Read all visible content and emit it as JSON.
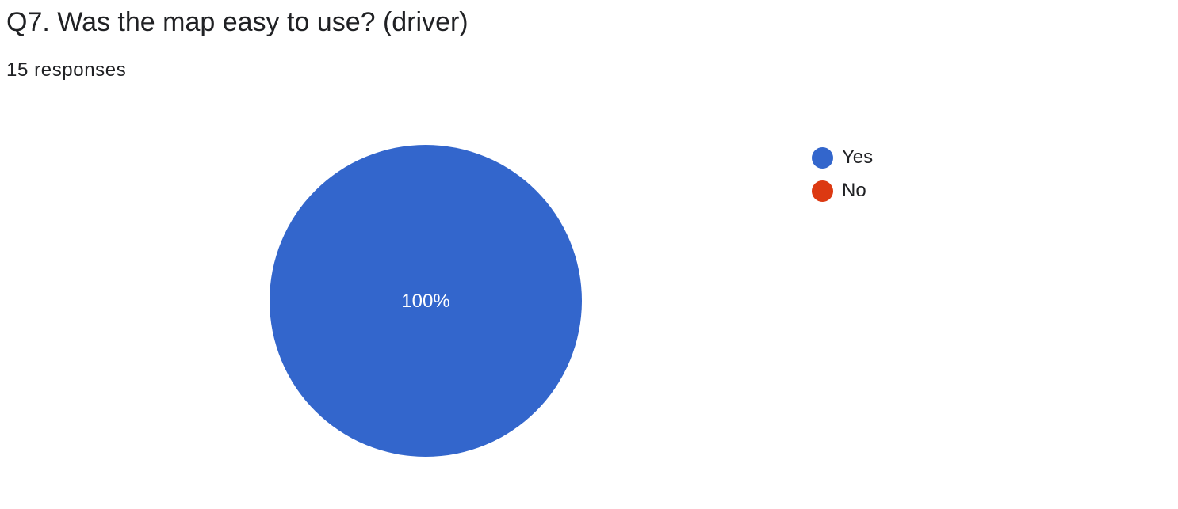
{
  "question": {
    "title": "Q7. Was the map easy to use? (driver)",
    "responses_text": "15 responses"
  },
  "chart_data": {
    "type": "pie",
    "categories": [
      "Yes",
      "No"
    ],
    "values": [
      100,
      0
    ],
    "value_unit": "%",
    "slice_labels": [
      "100%",
      ""
    ],
    "legend_position": "right",
    "colors": [
      "#3366cc",
      "#dc3912"
    ]
  }
}
